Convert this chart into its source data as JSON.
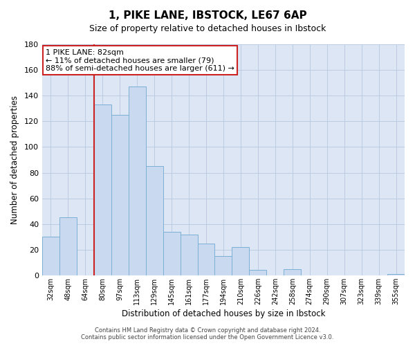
{
  "title": "1, PIKE LANE, IBSTOCK, LE67 6AP",
  "subtitle": "Size of property relative to detached houses in Ibstock",
  "xlabel": "Distribution of detached houses by size in Ibstock",
  "ylabel": "Number of detached properties",
  "bin_labels": [
    "32sqm",
    "48sqm",
    "64sqm",
    "80sqm",
    "97sqm",
    "113sqm",
    "129sqm",
    "145sqm",
    "161sqm",
    "177sqm",
    "194sqm",
    "210sqm",
    "226sqm",
    "242sqm",
    "258sqm",
    "274sqm",
    "290sqm",
    "307sqm",
    "323sqm",
    "339sqm",
    "355sqm"
  ],
  "bar_values": [
    30,
    45,
    0,
    133,
    125,
    147,
    85,
    34,
    32,
    25,
    15,
    22,
    4,
    0,
    5,
    0,
    0,
    0,
    0,
    0,
    1
  ],
  "bar_color": "#c9d9f0",
  "bar_edge_color": "#7bafd4",
  "vline_x_index": 3,
  "vline_color": "#cc2222",
  "annotation_line1": "1 PIKE LANE: 82sqm",
  "annotation_line2": "← 11% of detached houses are smaller (79)",
  "annotation_line3": "88% of semi-detached houses are larger (611) →",
  "annotation_box_edge_color": "#cc2222",
  "ylim": [
    0,
    180
  ],
  "yticks": [
    0,
    20,
    40,
    60,
    80,
    100,
    120,
    140,
    160,
    180
  ],
  "footer_line1": "Contains HM Land Registry data © Crown copyright and database right 2024.",
  "footer_line2": "Contains public sector information licensed under the Open Government Licence v3.0.",
  "background_color": "#ffffff",
  "plot_bg_color": "#dce6f5",
  "grid_color": "#b8c8e0"
}
